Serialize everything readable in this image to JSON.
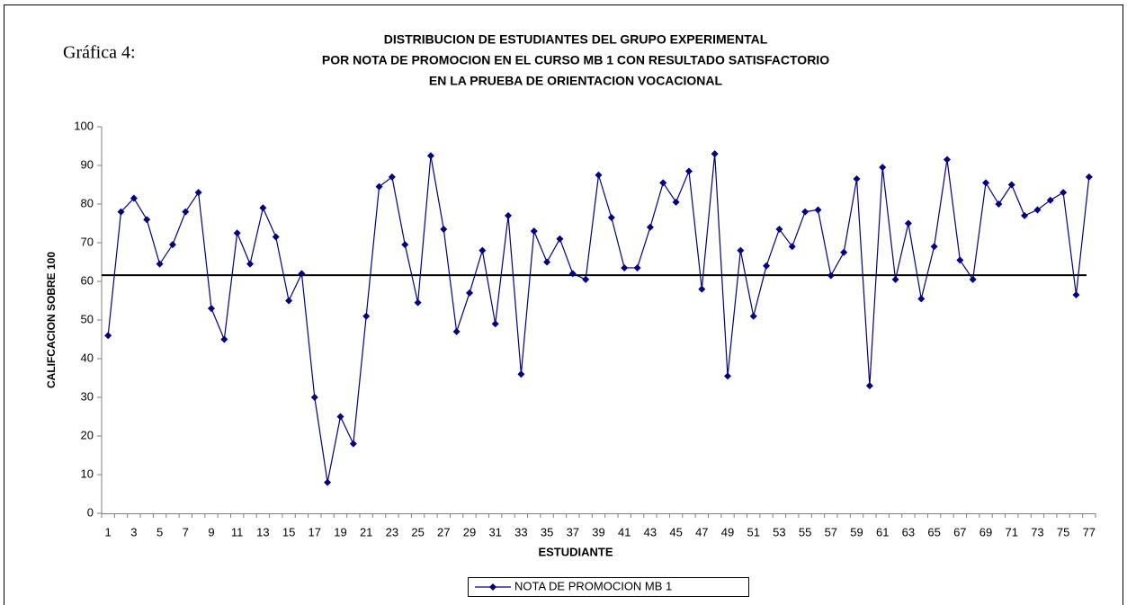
{
  "chart_data": {
    "type": "line",
    "figure_label": "Gráfica 4:",
    "title": [
      "DISTRIBUCION DE ESTUDIANTES DEL GRUPO EXPERIMENTAL",
      "POR NOTA DE PROMOCION EN EL CURSO MB 1 CON RESULTADO SATISFACTORIO",
      "EN LA PRUEBA DE ORIENTACION VOCACIONAL"
    ],
    "xlabel": "ESTUDIANTE",
    "ylabel": "CALIFCACION SOBRE 100",
    "categories": [
      "1",
      null,
      "3",
      null,
      "5",
      null,
      "7",
      null,
      "9",
      null,
      "11",
      null,
      "13",
      null,
      "15",
      null,
      "17",
      null,
      "19",
      null,
      "21",
      null,
      "23",
      null,
      "25",
      null,
      "27",
      null,
      "29",
      null,
      "31",
      null,
      "33",
      null,
      "35",
      null,
      "37",
      null,
      "39",
      null,
      "41",
      null,
      "43",
      null,
      "45",
      null,
      "47",
      null,
      "49",
      null,
      "51",
      null,
      "53",
      null,
      "55",
      null,
      "57",
      null,
      "59",
      null,
      "61",
      null,
      "63",
      null,
      "65",
      null,
      "67",
      null,
      "69",
      null,
      "71",
      null,
      "73",
      null,
      "75",
      null,
      "77"
    ],
    "series": [
      {
        "name": "NOTA DE PROMOCION MB 1",
        "color": "#000080",
        "values": [
          46,
          78,
          81.5,
          76,
          64.5,
          69.5,
          78,
          83,
          53,
          45,
          72.5,
          64.5,
          79,
          71.5,
          55,
          62,
          30,
          8,
          25,
          18,
          51,
          84.5,
          87,
          69.5,
          54.5,
          92.5,
          73.5,
          47,
          57,
          68,
          49,
          77,
          36,
          73,
          65,
          71,
          62,
          60.5,
          87.5,
          76.5,
          63.5,
          63.5,
          74,
          85.5,
          80.5,
          88.5,
          58,
          93,
          35.5,
          68,
          51,
          64,
          73.5,
          69,
          78,
          78.5,
          61.5,
          67.5,
          86.5,
          33,
          89.5,
          60.5,
          75,
          55.5,
          69,
          91.5,
          65.5,
          60.5,
          85.5,
          80,
          85,
          77,
          78.5,
          81,
          83,
          56.5,
          87
        ]
      }
    ],
    "threshold": 61.6,
    "ylim": [
      0,
      100
    ],
    "yticks": [
      0,
      10,
      20,
      30,
      40,
      50,
      60,
      70,
      80,
      90,
      100
    ],
    "grid": false,
    "legend": "bottom"
  }
}
